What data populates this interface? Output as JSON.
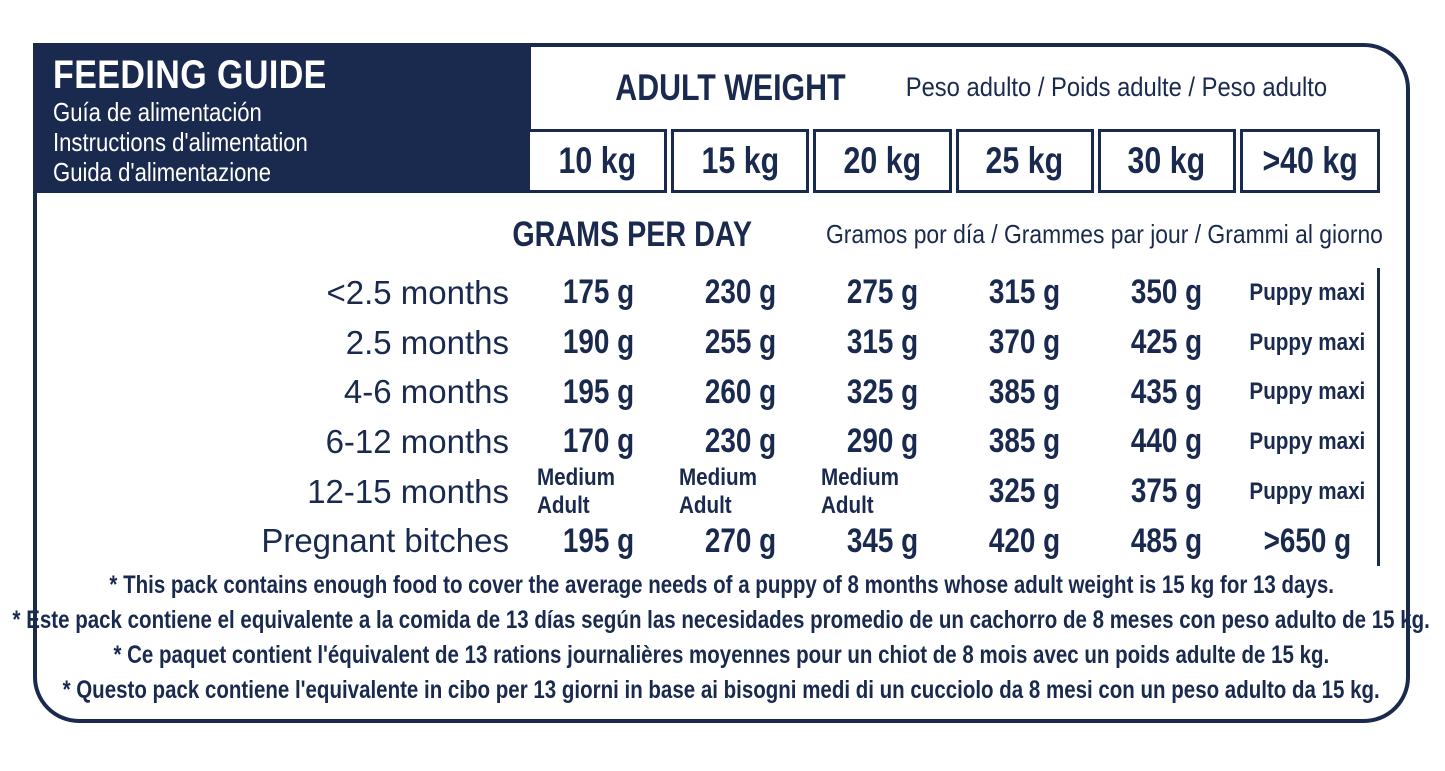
{
  "colors": {
    "navy": "#1a2a4e",
    "background": "#ffffff"
  },
  "header": {
    "title": "FEEDING GUIDE",
    "subtitles": [
      "Guía de alimentación",
      "Instructions d'alimentation",
      "Guida d'alimentazione"
    ]
  },
  "adult_weight": {
    "title": "ADULT WEIGHT",
    "subtitle": "Peso adulto / Poids adulte / Peso adulto",
    "columns": [
      "10 kg",
      "15 kg",
      "20 kg",
      "25 kg",
      "30 kg",
      ">40 kg"
    ]
  },
  "grams_per_day": {
    "title": "GRAMS PER DAY",
    "subtitle": "Gramos por día / Grammes par jour / Grammi al giorno"
  },
  "table": {
    "rows": [
      {
        "label": "<2.5 months",
        "values": [
          "175 g",
          "230 g",
          "275 g",
          "315 g",
          "350 g",
          "Puppy maxi"
        ]
      },
      {
        "label": "2.5 months",
        "values": [
          "190 g",
          "255 g",
          "315 g",
          "370 g",
          "425 g",
          "Puppy maxi"
        ]
      },
      {
        "label": "4-6 months",
        "values": [
          "195 g",
          "260 g",
          "325 g",
          "385 g",
          "435 g",
          "Puppy maxi"
        ]
      },
      {
        "label": "6-12 months",
        "values": [
          "170 g",
          "230 g",
          "290 g",
          "385 g",
          "440 g",
          "Puppy maxi"
        ]
      },
      {
        "label": "12-15 months",
        "values": [
          "Medium Adult",
          "Medium Adult",
          "Medium Adult",
          "325 g",
          "375 g",
          "Puppy maxi"
        ]
      },
      {
        "label": "Pregnant bitches",
        "values": [
          "195 g",
          "270 g",
          "345 g",
          "420 g",
          "485 g",
          ">650 g"
        ]
      }
    ]
  },
  "footnotes": [
    "* This pack contains enough food to cover the average needs of a puppy of 8 months whose adult weight is 15 kg for 13 days.",
    "* Este pack contiene el equivalente a la comida de 13 días según las necesidades promedio de un cachorro de 8 meses con peso adulto de 15 kg.",
    "* Ce paquet contient l'équivalent de 13 rations journalières moyennes pour un chiot de 8 mois avec un poids adulte de 15 kg.",
    "* Questo pack contiene l'equivalente in cibo per 13 giorni in base ai bisogni medi di un cucciolo da 8 mesi con un peso adulto da 15 kg."
  ]
}
